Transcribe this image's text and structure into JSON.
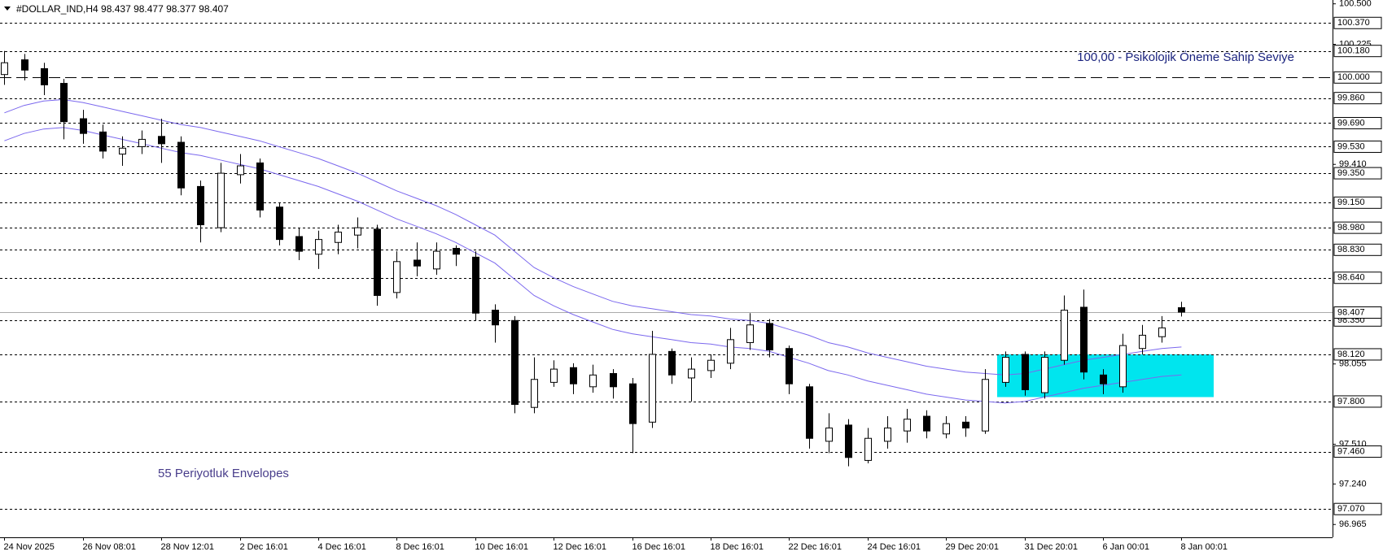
{
  "chart_data": {
    "type": "candlestick",
    "title": "#DOLLAR_IND,H4  98.437 98.477 98.377 98.407",
    "annotations": [
      "100,00 -  Psikolojik Öneme Sahip Seviye",
      "55 Periyotluk Envelopes"
    ],
    "categories": [
      "24 Nov 2025",
      null,
      null,
      null,
      "26 Nov 08:01",
      null,
      null,
      null,
      "28 Nov 12:01",
      null,
      null,
      null,
      "2 Dec 16:01",
      null,
      null,
      null,
      "4 Dec 16:01",
      null,
      null,
      null,
      "8 Dec 16:01",
      null,
      null,
      null,
      "10 Dec 16:01",
      null,
      null,
      null,
      "12 Dec 16:01",
      null,
      null,
      null,
      "16 Dec 16:01",
      null,
      null,
      null,
      "18 Dec 16:01",
      null,
      null,
      null,
      "22 Dec 16:01",
      null,
      null,
      null,
      "24 Dec 16:01",
      null,
      null,
      null,
      "29 Dec 20:01",
      null,
      null,
      null,
      "31 Dec 20:01",
      null,
      null,
      null,
      "6 Jan 00:01",
      null,
      null,
      null,
      "8 Jan 00:01"
    ],
    "open": [
      100.02,
      100.12,
      100.06,
      99.96,
      99.72,
      99.63,
      99.48,
      99.53,
      99.6,
      99.56,
      99.26,
      98.98,
      99.34,
      99.42,
      99.12,
      98.92,
      98.8,
      98.88,
      98.93,
      98.97,
      98.54,
      98.76,
      98.7,
      98.84,
      98.78,
      98.42,
      98.35,
      97.76,
      97.93,
      98.03,
      97.9,
      97.99,
      97.92,
      97.66,
      98.14,
      97.96,
      98.01,
      98.06,
      98.2,
      98.33,
      98.16,
      97.9,
      97.53,
      97.64,
      97.4,
      97.53,
      97.6,
      97.7,
      97.58,
      97.66,
      97.6,
      97.93,
      98.12,
      97.86,
      98.08,
      98.44,
      97.98,
      97.9,
      98.16,
      98.24,
      98.437
    ],
    "high": [
      100.18,
      100.16,
      100.1,
      99.99,
      99.78,
      99.68,
      99.6,
      99.64,
      99.72,
      99.6,
      99.3,
      99.42,
      99.48,
      99.45,
      99.15,
      98.98,
      98.96,
      99.0,
      99.05,
      99.0,
      98.82,
      98.88,
      98.88,
      98.86,
      98.82,
      98.46,
      98.38,
      98.1,
      98.08,
      98.06,
      98.05,
      98.02,
      97.96,
      98.28,
      98.16,
      98.1,
      98.12,
      98.3,
      98.4,
      98.36,
      98.18,
      97.92,
      97.72,
      97.68,
      97.62,
      97.7,
      97.75,
      97.74,
      97.7,
      97.7,
      98.02,
      98.14,
      98.14,
      98.14,
      98.52,
      98.56,
      98.02,
      98.26,
      98.32,
      98.38,
      98.477
    ],
    "low": [
      99.95,
      99.98,
      99.88,
      99.58,
      99.55,
      99.45,
      99.4,
      99.48,
      99.42,
      99.2,
      98.88,
      98.95,
      99.28,
      99.05,
      98.86,
      98.76,
      98.7,
      98.8,
      98.84,
      98.45,
      98.5,
      98.65,
      98.66,
      98.72,
      98.35,
      98.2,
      97.72,
      97.72,
      97.9,
      97.85,
      97.86,
      97.82,
      97.45,
      97.62,
      97.92,
      97.8,
      97.96,
      98.02,
      98.15,
      98.1,
      97.85,
      97.48,
      97.45,
      97.36,
      97.38,
      97.48,
      97.52,
      97.55,
      97.55,
      97.56,
      97.58,
      97.9,
      97.84,
      97.82,
      98.05,
      97.95,
      97.85,
      97.86,
      98.12,
      98.2,
      98.377
    ],
    "close": [
      100.1,
      100.05,
      99.95,
      99.7,
      99.62,
      99.5,
      99.52,
      99.58,
      99.55,
      99.25,
      99.0,
      99.35,
      99.4,
      99.1,
      98.9,
      98.82,
      98.9,
      98.95,
      98.98,
      98.52,
      98.75,
      98.72,
      98.82,
      98.8,
      98.4,
      98.32,
      97.78,
      97.95,
      98.02,
      97.92,
      97.98,
      97.9,
      97.65,
      98.12,
      97.98,
      98.02,
      98.08,
      98.22,
      98.32,
      98.15,
      97.92,
      97.55,
      97.62,
      97.42,
      97.55,
      97.62,
      97.68,
      97.6,
      97.65,
      97.62,
      97.95,
      98.1,
      97.88,
      98.1,
      98.42,
      98.0,
      97.92,
      98.18,
      98.25,
      98.3,
      98.407
    ],
    "envelopes": [
      {
        "color": "#7b68ee",
        "values": [
          99.76,
          99.81,
          99.84,
          99.85,
          99.83,
          99.8,
          99.77,
          99.74,
          99.71,
          99.68,
          99.66,
          99.63,
          99.6,
          99.57,
          99.53,
          99.49,
          99.45,
          99.4,
          99.35,
          99.29,
          99.23,
          99.18,
          99.13,
          99.07,
          99.0,
          98.93,
          98.82,
          98.71,
          98.64,
          98.58,
          98.53,
          98.48,
          98.45,
          98.43,
          98.41,
          98.39,
          98.38,
          98.36,
          98.35,
          98.33,
          98.29,
          98.25,
          98.2,
          98.17,
          98.13,
          98.1,
          98.07,
          98.04,
          98.02,
          98.0,
          97.99,
          97.98,
          97.99,
          98.02,
          98.05,
          98.08,
          98.1,
          98.12,
          98.14,
          98.16,
          98.17
        ]
      },
      {
        "color": "#7b68ee",
        "values": [
          99.57,
          99.62,
          99.65,
          99.66,
          99.64,
          99.61,
          99.58,
          99.55,
          99.52,
          99.49,
          99.47,
          99.44,
          99.41,
          99.38,
          99.34,
          99.3,
          99.26,
          99.21,
          99.16,
          99.1,
          99.04,
          98.99,
          98.94,
          98.88,
          98.81,
          98.74,
          98.63,
          98.52,
          98.45,
          98.39,
          98.34,
          98.29,
          98.26,
          98.24,
          98.22,
          98.2,
          98.19,
          98.17,
          98.16,
          98.14,
          98.1,
          98.06,
          98.01,
          97.98,
          97.94,
          97.91,
          97.88,
          97.85,
          97.83,
          97.81,
          97.8,
          97.79,
          97.8,
          97.83,
          97.86,
          97.89,
          97.91,
          97.93,
          97.95,
          97.97,
          97.98
        ]
      }
    ],
    "zone": {
      "top": 98.12,
      "bottom": 97.83,
      "color": "#00e5ee"
    },
    "ylim": [
      96.878,
      100.526
    ],
    "yticks": [
      {
        "value": 100.5,
        "label": "100.500"
      },
      {
        "value": 100.225,
        "label": "100.225"
      },
      {
        "value": 99.41,
        "label": "99.410"
      },
      {
        "value": 98.055,
        "label": "98.055"
      },
      {
        "value": 97.51,
        "label": "97.510"
      },
      {
        "value": 97.24,
        "label": "97.240"
      },
      {
        "value": 96.965,
        "label": "96.965"
      }
    ],
    "levels": [
      {
        "value": 100.37,
        "label": "100.370"
      },
      {
        "value": 100.18,
        "label": "100.180"
      },
      {
        "value": 100,
        "label": "100.000"
      },
      {
        "value": 99.86,
        "label": "99.860"
      },
      {
        "value": 99.69,
        "label": "99.690"
      },
      {
        "value": 99.53,
        "label": "99.530"
      },
      {
        "value": 99.35,
        "label": "99.350"
      },
      {
        "value": 99.15,
        "label": "99.150"
      },
      {
        "value": 98.98,
        "label": "98.980"
      },
      {
        "value": 98.83,
        "label": "98.830"
      },
      {
        "value": 98.64,
        "label": "98.640"
      },
      {
        "value": 98.35,
        "label": "98.350"
      },
      {
        "value": 98.12,
        "label": "98.120"
      },
      {
        "value": 97.8,
        "label": "97.800"
      },
      {
        "value": 97.46,
        "label": "97.460"
      },
      {
        "value": 97.07,
        "label": "97.070"
      }
    ],
    "last_price": 98.407
  }
}
